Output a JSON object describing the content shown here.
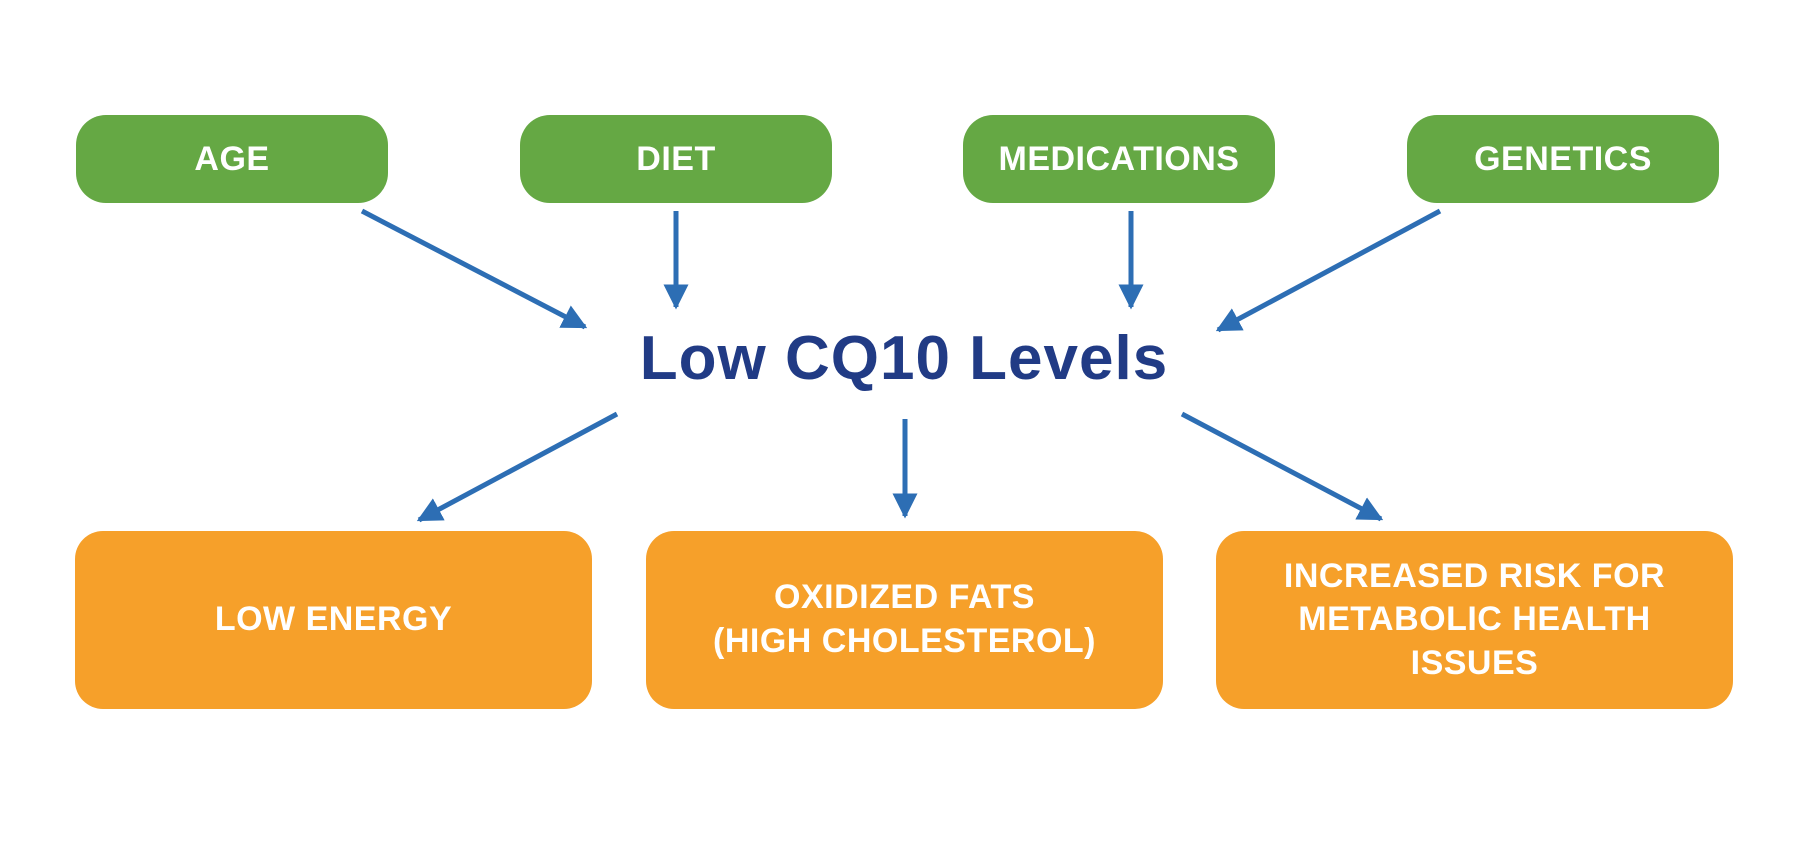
{
  "colors": {
    "cause": "#65a844",
    "effect": "#f6a02a",
    "center": "#213b85",
    "arrow": "#2d6eb4"
  },
  "causes": [
    {
      "label": "AGE"
    },
    {
      "label": "DIET"
    },
    {
      "label": "MEDICATIONS"
    },
    {
      "label": "GENETICS"
    }
  ],
  "center": {
    "label": "Low CQ10 Levels"
  },
  "effects": [
    {
      "lines": [
        "LOW ENERGY"
      ]
    },
    {
      "lines": [
        "OXIDIZED FATS",
        "(HIGH CHOLESTEROL)"
      ]
    },
    {
      "lines": [
        "INCREASED RISK FOR",
        "METABOLIC HEALTH",
        "ISSUES"
      ]
    }
  ]
}
